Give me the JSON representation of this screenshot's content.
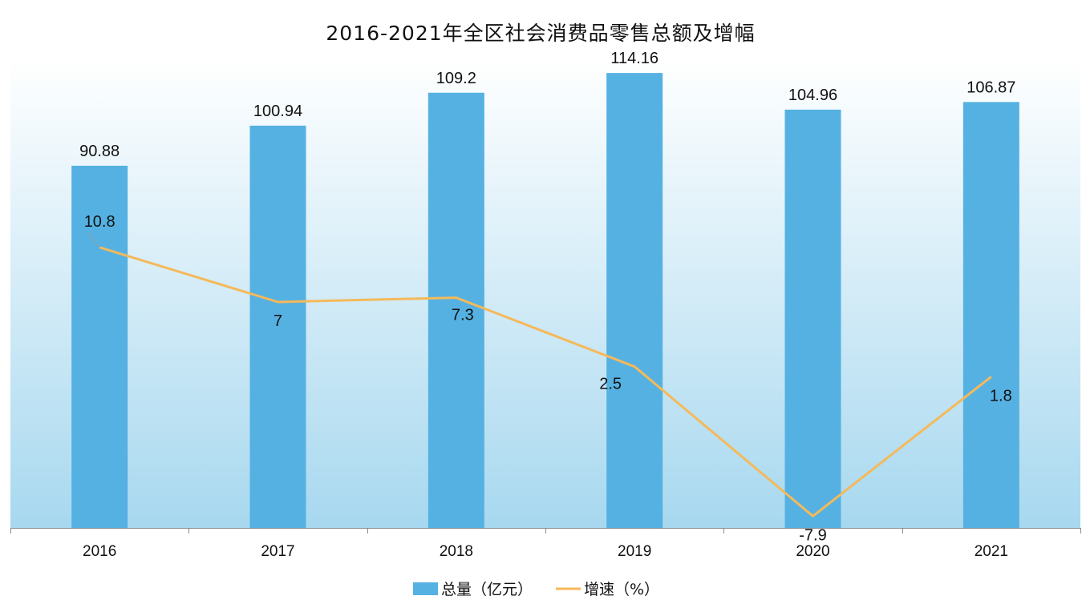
{
  "chart_data": {
    "type": "bar",
    "title": "2016-2021年全区社会消费品零售总额及增幅",
    "xlabel": "",
    "ylabel": "",
    "categories": [
      "2016",
      "2017",
      "2018",
      "2019",
      "2020",
      "2021"
    ],
    "series": [
      {
        "name": "总量（亿元）",
        "type": "bar",
        "values": [
          90.88,
          100.94,
          109.2,
          114.16,
          104.96,
          106.87
        ],
        "labels": [
          "90.88",
          "100.94",
          "109.2",
          "114.16",
          "104.96",
          "106.87"
        ],
        "color": "#55b1e2"
      },
      {
        "name": "增速（%）",
        "type": "line",
        "values": [
          10.8,
          7,
          7.3,
          2.5,
          -7.9,
          1.8
        ],
        "labels": [
          "10.8",
          "7",
          "7.3",
          "2.5",
          "-7.9",
          "1.8"
        ],
        "color": "#f5b95a"
      }
    ],
    "ylim": [
      0,
      118
    ],
    "y2lim": [
      -9,
      23
    ],
    "grid": false,
    "legend_position": "bottom-center",
    "background_gradient": [
      "#ffffff",
      "#a7d8ef"
    ]
  }
}
